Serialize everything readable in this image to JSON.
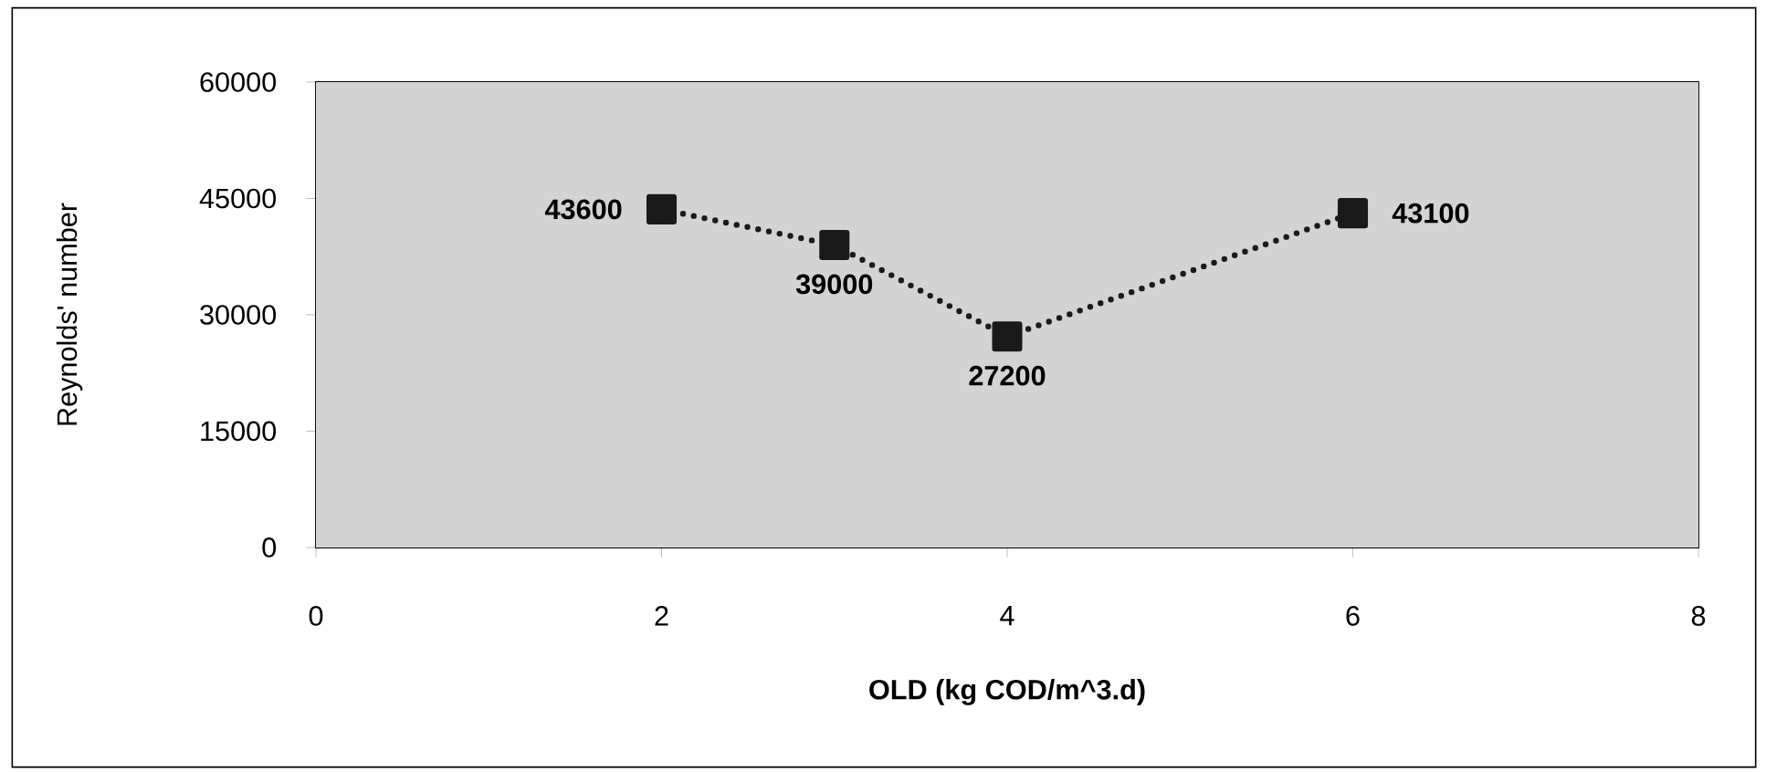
{
  "chart_data": {
    "type": "line",
    "xlabel": "OLD (kg COD/m^3.d)",
    "ylabel": "Reynolds' number",
    "x": [
      2,
      3,
      4,
      6
    ],
    "series": [
      {
        "color": "#1a1a1a",
        "values": [
          43600,
          39000,
          27200,
          43100
        ]
      }
    ],
    "xlim": [
      0,
      8
    ],
    "xticks": [
      0,
      2,
      4,
      6,
      8
    ],
    "ylim": [
      0,
      60000
    ],
    "yticks": [
      0,
      15000,
      30000,
      45000,
      60000
    ],
    "marker": "square",
    "line_style": "dotted",
    "data_labels": true
  }
}
